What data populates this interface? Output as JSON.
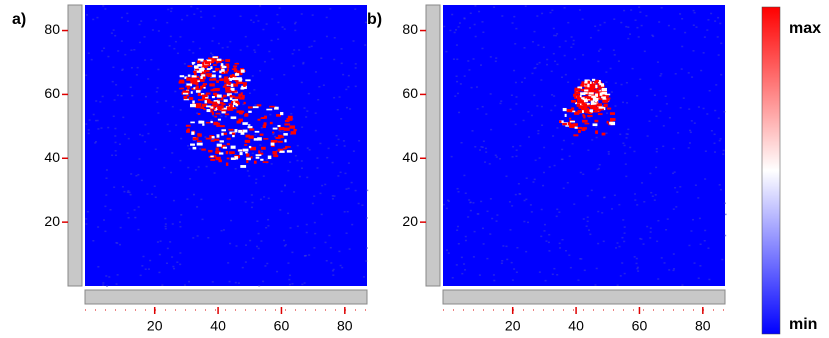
{
  "chart_data": [
    {
      "type": "heatmap",
      "title": "a)",
      "xlim": [
        -2,
        87
      ],
      "ylim": [
        0,
        88
      ],
      "xticks": [
        20,
        40,
        60,
        80
      ],
      "yticks": [
        20,
        40,
        60,
        80
      ]
    },
    {
      "type": "heatmap",
      "title": "b)",
      "xlim": [
        -2,
        87
      ],
      "ylim": [
        0,
        88
      ],
      "xticks": [
        20,
        40,
        60,
        80
      ],
      "yticks": [
        20,
        40,
        60,
        80
      ]
    }
  ],
  "colorbar": {
    "max_label": "max",
    "min_label": "min",
    "colors": [
      "#ff0000",
      "#ffffff",
      "#0000ff"
    ]
  }
}
